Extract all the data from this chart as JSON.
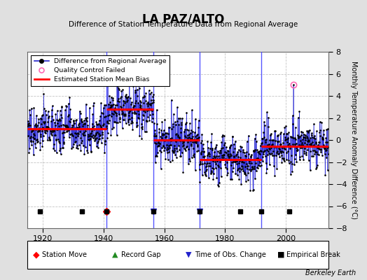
{
  "title": "LA PAZ/ALTO",
  "subtitle": "Difference of Station Temperature Data from Regional Average",
  "ylabel": "Monthly Temperature Anomaly Difference (°C)",
  "credit": "Berkeley Earth",
  "xlim": [
    1915,
    2014
  ],
  "ylim": [
    -8,
    8
  ],
  "yticks": [
    -8,
    -6,
    -4,
    -2,
    0,
    2,
    4,
    6,
    8
  ],
  "xticks": [
    1920,
    1940,
    1960,
    1980,
    2000
  ],
  "bg_color": "#e0e0e0",
  "plot_bg": "#ffffff",
  "grid_color": "#aaaaaa",
  "segments": [
    {
      "x_start": 1915.0,
      "x_end": 1941.0,
      "bias": 1.0
    },
    {
      "x_start": 1941.0,
      "x_end": 1956.5,
      "bias": 2.8
    },
    {
      "x_start": 1956.5,
      "x_end": 1971.5,
      "bias": 0.0
    },
    {
      "x_start": 1971.5,
      "x_end": 1992.0,
      "bias": -1.8
    },
    {
      "x_start": 1992.0,
      "x_end": 2014.0,
      "bias": -0.6
    }
  ],
  "segment_breaks": [
    1941.0,
    1956.5,
    1971.5,
    1992.0
  ],
  "station_moves": [
    1941.0
  ],
  "time_of_obs_changes": [
    1956.5,
    1971.5
  ],
  "empirical_breaks": [
    1919.0,
    1933.0,
    1941.0,
    1956.5,
    1971.5,
    1985.0,
    1992.0,
    2001.0
  ],
  "spike_year": 2002.5,
  "spike_value": 5.0,
  "noise_std": 1.1,
  "seed": 77,
  "event_y": -6.5
}
